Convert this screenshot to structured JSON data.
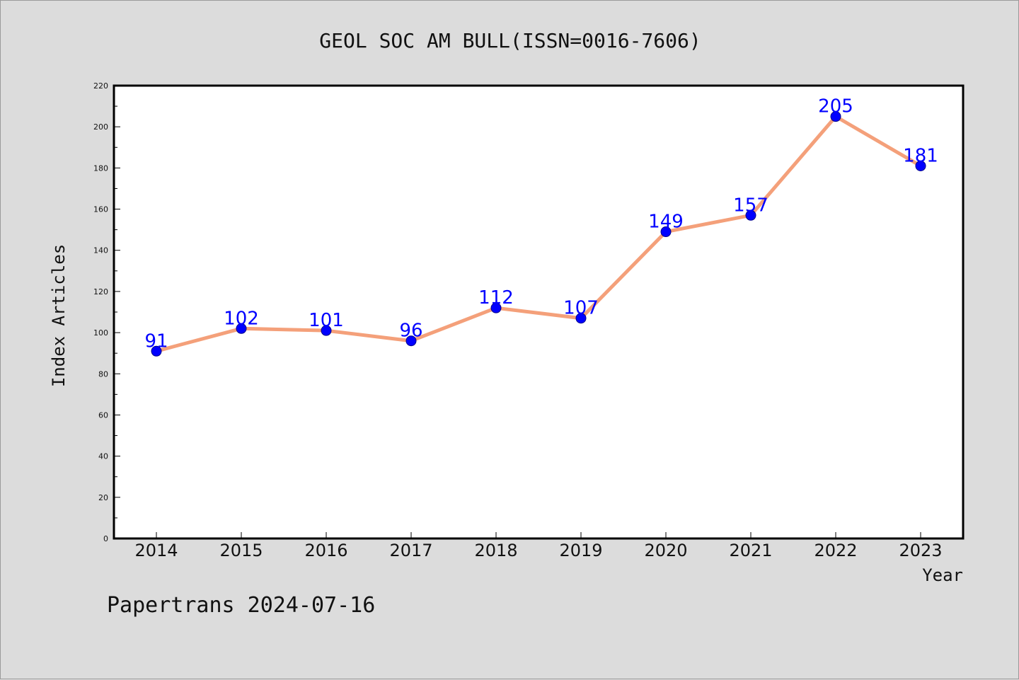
{
  "chart_data": {
    "type": "line",
    "title": "GEOL SOC AM BULL(ISSN=0016-7606)",
    "xlabel": "Year",
    "ylabel": "Index Articles",
    "categories": [
      "2014",
      "2015",
      "2016",
      "2017",
      "2018",
      "2019",
      "2020",
      "2021",
      "2022",
      "2023"
    ],
    "series": [
      {
        "values": [
          91,
          102,
          101,
          96,
          112,
          107,
          149,
          157,
          205,
          181
        ]
      }
    ],
    "ylim": [
      0,
      220
    ],
    "yticks": [
      0,
      20,
      40,
      60,
      80,
      100,
      120,
      140,
      160,
      180,
      200,
      220
    ],
    "grid": false,
    "data_labels": true,
    "colors": {
      "line": "#f4a07a",
      "marker": "#0000ff",
      "label": "#0000ff",
      "background": "#dcdcdc",
      "plot_bg": "#ffffff"
    }
  },
  "footer": "Papertrans 2024-07-16"
}
